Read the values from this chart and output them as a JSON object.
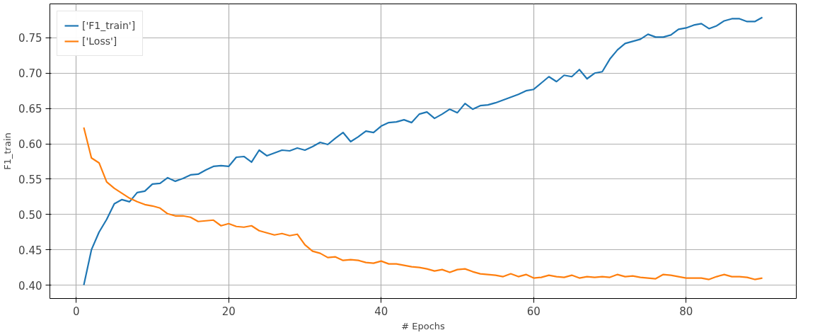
{
  "chart_data": {
    "type": "line",
    "xlabel": "# Epochs",
    "ylabel": "F1_train",
    "x": [
      1,
      2,
      3,
      4,
      5,
      6,
      7,
      8,
      9,
      10,
      11,
      12,
      13,
      14,
      15,
      16,
      17,
      18,
      19,
      20,
      21,
      22,
      23,
      24,
      25,
      26,
      27,
      28,
      29,
      30,
      31,
      32,
      33,
      34,
      35,
      36,
      37,
      38,
      39,
      40,
      41,
      42,
      43,
      44,
      45,
      46,
      47,
      48,
      49,
      50,
      51,
      52,
      53,
      54,
      55,
      56,
      57,
      58,
      59,
      60,
      61,
      62,
      63,
      64,
      65,
      66,
      67,
      68,
      69,
      70,
      71,
      72,
      73,
      74,
      75,
      76,
      77,
      78,
      79,
      80,
      81,
      82,
      83,
      84,
      85,
      86,
      87,
      88,
      89,
      90
    ],
    "series": [
      {
        "name": "['F1_train']",
        "color": "#1f77b4",
        "values": [
          0.4,
          0.45,
          0.475,
          0.493,
          0.515,
          0.521,
          0.518,
          0.531,
          0.533,
          0.543,
          0.544,
          0.552,
          0.547,
          0.551,
          0.556,
          0.557,
          0.563,
          0.568,
          0.569,
          0.568,
          0.581,
          0.582,
          0.574,
          0.591,
          0.583,
          0.587,
          0.591,
          0.59,
          0.594,
          0.591,
          0.596,
          0.602,
          0.599,
          0.608,
          0.616,
          0.603,
          0.61,
          0.618,
          0.616,
          0.625,
          0.63,
          0.631,
          0.634,
          0.63,
          0.642,
          0.645,
          0.636,
          0.642,
          0.649,
          0.644,
          0.657,
          0.649,
          0.654,
          0.655,
          0.658,
          0.662,
          0.666,
          0.67,
          0.675,
          0.677,
          0.686,
          0.695,
          0.688,
          0.697,
          0.695,
          0.705,
          0.692,
          0.7,
          0.702,
          0.72,
          0.733,
          0.742,
          0.745,
          0.748,
          0.755,
          0.751,
          0.751,
          0.754,
          0.762,
          0.764,
          0.768,
          0.77,
          0.763,
          0.767,
          0.774,
          0.777,
          0.777,
          0.773,
          0.773,
          0.779
        ]
      },
      {
        "name": "['Loss']",
        "color": "#ff7f0e",
        "values": [
          0.623,
          0.58,
          0.573,
          0.546,
          0.537,
          0.53,
          0.523,
          0.518,
          0.514,
          0.512,
          0.509,
          0.501,
          0.498,
          0.498,
          0.496,
          0.49,
          0.491,
          0.492,
          0.484,
          0.487,
          0.483,
          0.482,
          0.484,
          0.477,
          0.474,
          0.471,
          0.473,
          0.47,
          0.472,
          0.457,
          0.448,
          0.445,
          0.439,
          0.44,
          0.435,
          0.436,
          0.435,
          0.432,
          0.431,
          0.434,
          0.43,
          0.43,
          0.428,
          0.426,
          0.425,
          0.423,
          0.42,
          0.422,
          0.418,
          0.422,
          0.423,
          0.419,
          0.416,
          0.415,
          0.414,
          0.412,
          0.416,
          0.412,
          0.415,
          0.41,
          0.411,
          0.414,
          0.412,
          0.411,
          0.414,
          0.41,
          0.412,
          0.411,
          0.412,
          0.411,
          0.415,
          0.412,
          0.413,
          0.411,
          0.41,
          0.409,
          0.415,
          0.414,
          0.412,
          0.41,
          0.41,
          0.41,
          0.408,
          0.412,
          0.415,
          0.412,
          0.412,
          0.411,
          0.408,
          0.41
        ]
      }
    ],
    "xlim": [
      -3.45,
      94.45
    ],
    "ylim": [
      0.381,
      0.798
    ],
    "xticks": [
      0,
      20,
      40,
      60,
      80
    ],
    "yticks": [
      {
        "value": 0.4,
        "label": "0.40"
      },
      {
        "value": 0.45,
        "label": "0.45"
      },
      {
        "value": 0.5,
        "label": "0.50"
      },
      {
        "value": 0.55,
        "label": "0.55"
      },
      {
        "value": 0.6,
        "label": "0.60"
      },
      {
        "value": 0.65,
        "label": "0.65"
      },
      {
        "value": 0.7,
        "label": "0.70"
      },
      {
        "value": 0.75,
        "label": "0.75"
      }
    ],
    "grid": true,
    "legend": "top left",
    "marker": "none",
    "line_style": "solid"
  }
}
